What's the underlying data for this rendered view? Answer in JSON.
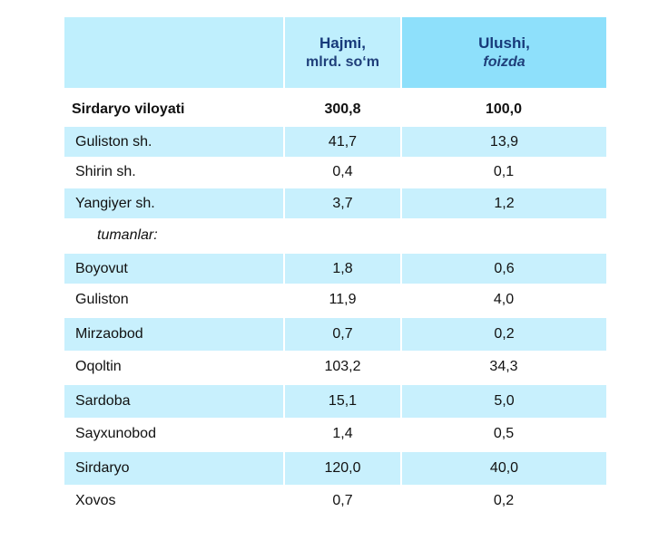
{
  "table": {
    "headers": {
      "volume_title": "Hajmi,",
      "volume_unit": "mlrd. so‘m",
      "share_title": "Ulushi,",
      "share_unit": "foizda"
    },
    "total": {
      "name": "Sirdaryo viloyati",
      "volume": "300,8",
      "share": "100,0"
    },
    "cities": [
      {
        "name": "Guliston  sh.",
        "volume": "41,7",
        "share": "13,9"
      },
      {
        "name": "Shirin sh.",
        "volume": "0,4",
        "share": "0,1"
      },
      {
        "name": "Yangiyer sh.",
        "volume": "3,7",
        "share": "1,2"
      }
    ],
    "subheader": "tumanlar:",
    "districts": [
      {
        "name": "Boyovut",
        "volume": "1,8",
        "share": "0,6"
      },
      {
        "name": "Guliston",
        "volume": "11,9",
        "share": "4,0"
      },
      {
        "name": "Mirzaobod",
        "volume": "0,7",
        "share": "0,2"
      },
      {
        "name": "Oqoltin",
        "volume": "103,2",
        "share": "34,3"
      },
      {
        "name": "Sardoba",
        "volume": "15,1",
        "share": "5,0"
      },
      {
        "name": "Sayxunobod",
        "volume": "1,4",
        "share": "0,5"
      },
      {
        "name": "Sirdaryo",
        "volume": "120,0",
        "share": "40,0"
      },
      {
        "name": "Xovos",
        "volume": "0,7",
        "share": "0,2"
      }
    ]
  }
}
